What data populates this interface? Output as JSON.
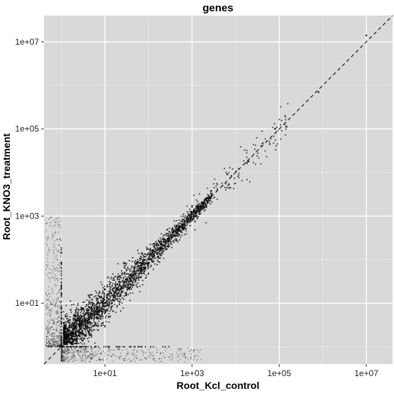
{
  "chart_data": {
    "type": "scatter",
    "title": "genes",
    "xlabel": "Root_Kcl_control",
    "ylabel": "Root_KNO3_treatment",
    "x_scale": "log10",
    "y_scale": "log10",
    "xlim": [
      0.4,
      40000000
    ],
    "ylim": [
      0.4,
      40000000
    ],
    "x_ticks": [
      10,
      1000,
      100000,
      10000000
    ],
    "x_tick_labels": [
      "1e+01",
      "1e+03",
      "1e+05",
      "1e+07"
    ],
    "y_ticks": [
      10,
      1000,
      100000,
      10000000
    ],
    "y_tick_labels": [
      "1e+01",
      "1e+03",
      "1e+05",
      "1e+07"
    ],
    "grid": true,
    "background_color": "#d9d9d9",
    "point_color": "#000000",
    "reference_line": {
      "type": "dashed",
      "slope": 1,
      "intercept": 0,
      "color": "#333333"
    },
    "series": [
      {
        "description_points": [
          {
            "x": 10,
            "y": 10
          },
          {
            "x": 30,
            "y": 35
          },
          {
            "x": 100,
            "y": 100
          },
          {
            "x": 300,
            "y": 280
          },
          {
            "x": 1000,
            "y": 1100
          },
          {
            "x": 5000,
            "y": 5000
          },
          {
            "x": 20000,
            "y": 18000
          },
          {
            "x": 80000,
            "y": 100000
          },
          {
            "x": 800000,
            "y": 700000
          },
          {
            "x": 10000000,
            "y": 14000000
          }
        ]
      }
    ]
  }
}
